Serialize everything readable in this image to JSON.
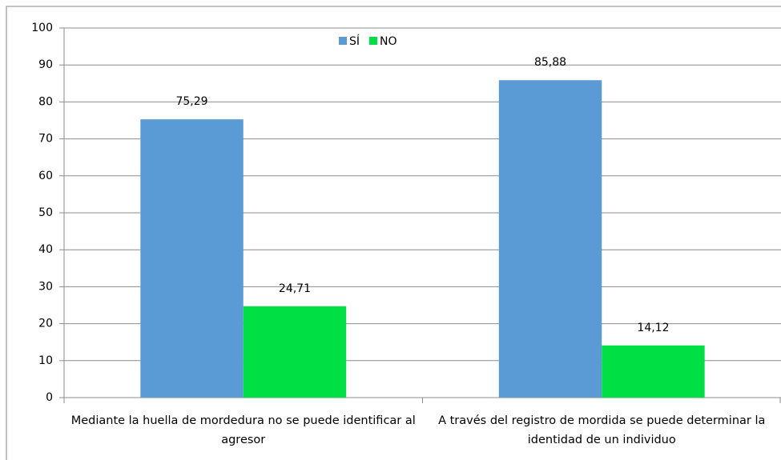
{
  "chart_data": {
    "type": "bar",
    "categories": [
      "Mediante la huella de mordedura no se puede identificar al agresor",
      "A través del registro de mordida se puede determinar la identidad de un individuo"
    ],
    "series": [
      {
        "name": "SÍ",
        "color": "#5b9bd5",
        "values": [
          75.29,
          85.88
        ],
        "value_labels": [
          "75,29",
          "85,88"
        ]
      },
      {
        "name": "NO",
        "color": "#00e045",
        "values": [
          24.71,
          14.12
        ],
        "value_labels": [
          "24,71",
          "14,12"
        ]
      }
    ],
    "ylim": [
      0,
      100
    ],
    "yticks": [
      0,
      10,
      20,
      30,
      40,
      50,
      60,
      70,
      80,
      90,
      100
    ],
    "grid": true,
    "legend": "top"
  }
}
